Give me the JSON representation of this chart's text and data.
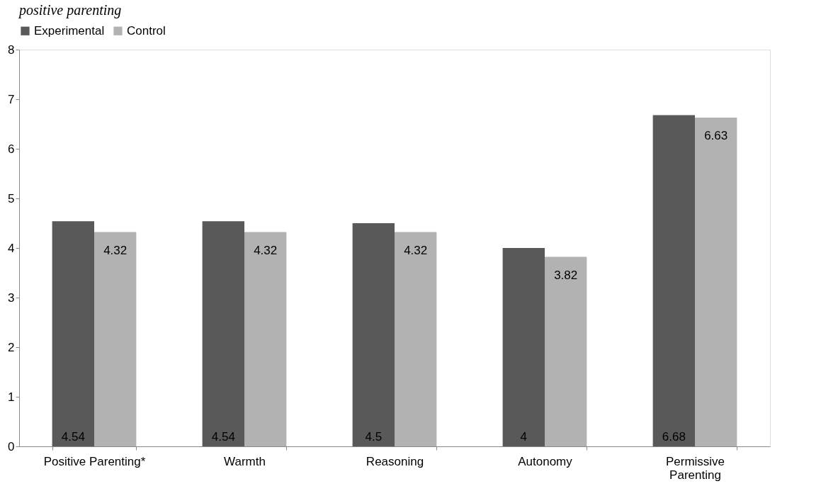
{
  "chart_data": {
    "type": "bar",
    "title": "positive parenting",
    "categories": [
      "Positive Parenting*",
      "Warmth",
      "Reasoning",
      "Autonomy",
      "Permissive Parenting"
    ],
    "series": [
      {
        "name": "Experimental",
        "color": "#595959",
        "values": [
          4.54,
          4.54,
          4.5,
          4,
          6.68
        ]
      },
      {
        "name": "Control",
        "color": "#b2b2b2",
        "values": [
          4.32,
          4.32,
          4.32,
          3.82,
          6.63
        ]
      }
    ],
    "ylim": [
      0,
      8
    ],
    "yticks": [
      0,
      1,
      2,
      3,
      4,
      5,
      6,
      7,
      8
    ],
    "grid": false,
    "legend": "top",
    "data_labels": true
  }
}
